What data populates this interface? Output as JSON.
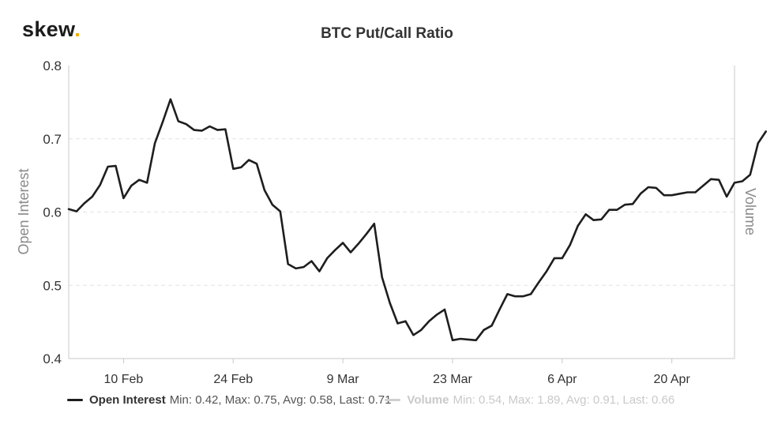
{
  "brand": {
    "name": "skew",
    "dot": "."
  },
  "chart_data": {
    "type": "line",
    "title": "BTC Put/Call Ratio",
    "ylabel": "Open Interest",
    "ylabel_right": "Volume",
    "ylim": [
      0.4,
      0.8
    ],
    "yticks": [
      "0.4",
      "0.5",
      "0.6",
      "0.7",
      "0.8"
    ],
    "xlim": [
      "2020-02-03",
      "2020-04-28"
    ],
    "xticks": [
      {
        "label": "10 Feb",
        "date": "2020-02-10"
      },
      {
        "label": "24 Feb",
        "date": "2020-02-24"
      },
      {
        "label": "9 Mar",
        "date": "2020-03-09"
      },
      {
        "label": "23 Mar",
        "date": "2020-03-23"
      },
      {
        "label": "6 Apr",
        "date": "2020-04-06"
      },
      {
        "label": "20 Apr",
        "date": "2020-04-20"
      }
    ],
    "grid": true,
    "legend_position": "bottom",
    "series": [
      {
        "name": "Open Interest",
        "color": "#1e1e1e",
        "visible": true,
        "stats": "Min: 0.42, Max: 0.75, Avg: 0.58, Last: 0.71",
        "points": [
          [
            "2020-02-03",
            0.604
          ],
          [
            "2020-02-04",
            0.601
          ],
          [
            "2020-02-05",
            0.612
          ],
          [
            "2020-02-06",
            0.621
          ],
          [
            "2020-02-07",
            0.637
          ],
          [
            "2020-02-08",
            0.662
          ],
          [
            "2020-02-09",
            0.663
          ],
          [
            "2020-02-10",
            0.619
          ],
          [
            "2020-02-11",
            0.636
          ],
          [
            "2020-02-12",
            0.644
          ],
          [
            "2020-02-13",
            0.64
          ],
          [
            "2020-02-14",
            0.694
          ],
          [
            "2020-02-15",
            0.723
          ],
          [
            "2020-02-16",
            0.754
          ],
          [
            "2020-02-17",
            0.724
          ],
          [
            "2020-02-18",
            0.72
          ],
          [
            "2020-02-19",
            0.712
          ],
          [
            "2020-02-20",
            0.711
          ],
          [
            "2020-02-21",
            0.717
          ],
          [
            "2020-02-22",
            0.712
          ],
          [
            "2020-02-23",
            0.713
          ],
          [
            "2020-02-24",
            0.659
          ],
          [
            "2020-02-25",
            0.661
          ],
          [
            "2020-02-26",
            0.671
          ],
          [
            "2020-02-27",
            0.666
          ],
          [
            "2020-02-28",
            0.63
          ],
          [
            "2020-02-29",
            0.61
          ],
          [
            "2020-03-01",
            0.601
          ],
          [
            "2020-03-02",
            0.529
          ],
          [
            "2020-03-03",
            0.523
          ],
          [
            "2020-03-04",
            0.525
          ],
          [
            "2020-03-05",
            0.533
          ],
          [
            "2020-03-06",
            0.519
          ],
          [
            "2020-03-07",
            0.537
          ],
          [
            "2020-03-08",
            0.548
          ],
          [
            "2020-03-09",
            0.558
          ],
          [
            "2020-03-10",
            0.545
          ],
          [
            "2020-03-11",
            0.557
          ],
          [
            "2020-03-12",
            0.57
          ],
          [
            "2020-03-13",
            0.584
          ],
          [
            "2020-03-14",
            0.511
          ],
          [
            "2020-03-15",
            0.476
          ],
          [
            "2020-03-16",
            0.448
          ],
          [
            "2020-03-17",
            0.451
          ],
          [
            "2020-03-18",
            0.432
          ],
          [
            "2020-03-19",
            0.439
          ],
          [
            "2020-03-20",
            0.451
          ],
          [
            "2020-03-21",
            0.46
          ],
          [
            "2020-03-22",
            0.467
          ],
          [
            "2020-03-23",
            0.425
          ],
          [
            "2020-03-24",
            0.427
          ],
          [
            "2020-03-25",
            0.426
          ],
          [
            "2020-03-26",
            0.425
          ],
          [
            "2020-03-27",
            0.439
          ],
          [
            "2020-03-28",
            0.445
          ],
          [
            "2020-03-29",
            0.467
          ],
          [
            "2020-03-30",
            0.488
          ],
          [
            "2020-03-31",
            0.485
          ],
          [
            "2020-04-01",
            0.485
          ],
          [
            "2020-04-02",
            0.488
          ],
          [
            "2020-04-03",
            0.504
          ],
          [
            "2020-04-04",
            0.519
          ],
          [
            "2020-04-05",
            0.537
          ],
          [
            "2020-04-06",
            0.537
          ],
          [
            "2020-04-07",
            0.555
          ],
          [
            "2020-04-08",
            0.581
          ],
          [
            "2020-04-09",
            0.597
          ],
          [
            "2020-04-10",
            0.589
          ],
          [
            "2020-04-11",
            0.59
          ],
          [
            "2020-04-12",
            0.603
          ],
          [
            "2020-04-13",
            0.603
          ],
          [
            "2020-04-14",
            0.61
          ],
          [
            "2020-04-15",
            0.611
          ],
          [
            "2020-04-16",
            0.625
          ],
          [
            "2020-04-17",
            0.634
          ],
          [
            "2020-04-18",
            0.633
          ],
          [
            "2020-04-19",
            0.623
          ],
          [
            "2020-04-20",
            0.623
          ],
          [
            "2020-04-21",
            0.625
          ],
          [
            "2020-04-22",
            0.627
          ],
          [
            "2020-04-23",
            0.627
          ],
          [
            "2020-04-24",
            0.636
          ],
          [
            "2020-04-25",
            0.645
          ],
          [
            "2020-04-26",
            0.644
          ],
          [
            "2020-04-27",
            0.621
          ],
          [
            "2020-04-28",
            0.64
          ],
          [
            "2020-04-29",
            0.642
          ],
          [
            "2020-04-30",
            0.651
          ],
          [
            "2020-05-01",
            0.694
          ],
          [
            "2020-05-02",
            0.71
          ]
        ]
      },
      {
        "name": "Volume",
        "color": "#cfcfcf",
        "visible": false,
        "stats": "Min: 0.54, Max: 1.89, Avg: 0.91, Last: 0.66"
      }
    ]
  }
}
